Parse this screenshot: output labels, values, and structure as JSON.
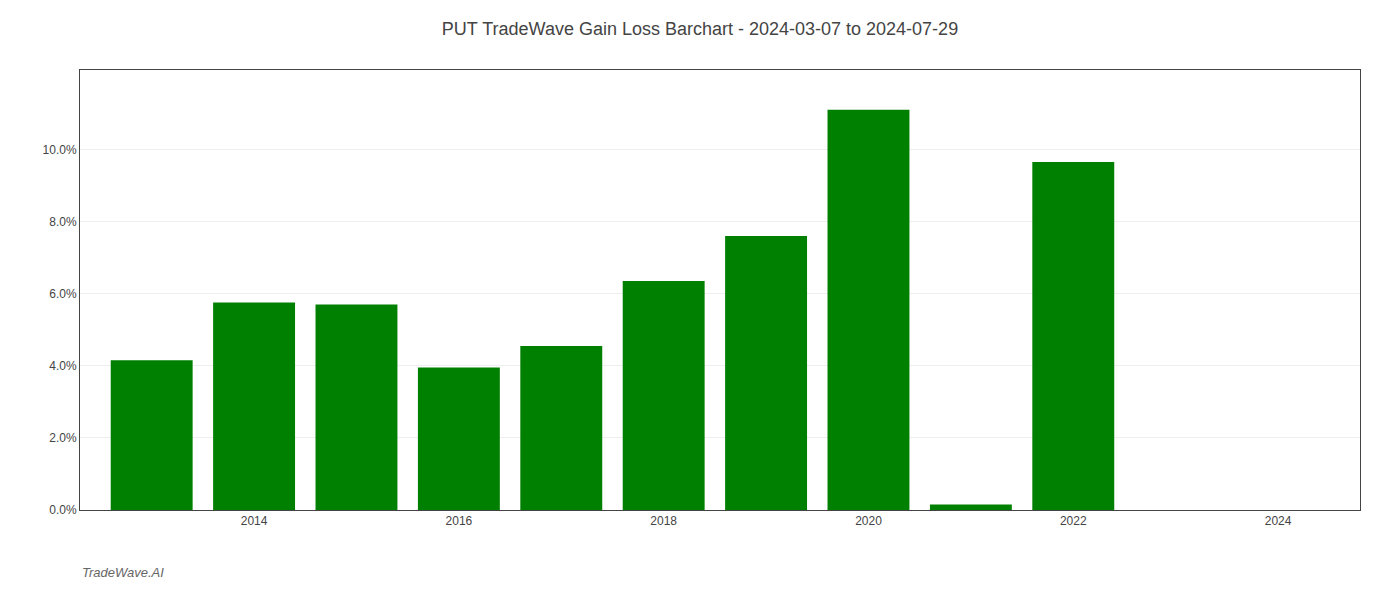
{
  "chart_data": {
    "type": "bar",
    "title": "PUT TradeWave Gain Loss Barchart - 2024-03-07 to 2024-07-29",
    "annotations": [
      {
        "text": "TradeWave.AI"
      }
    ],
    "x": [
      2013,
      2014,
      2015,
      2016,
      2017,
      2018,
      2019,
      2020,
      2021,
      2022,
      2023
    ],
    "values": [
      0.0415,
      0.0575,
      0.057,
      0.0395,
      0.0455,
      0.0635,
      0.076,
      0.111,
      0.0015,
      0.0965,
      0.0
    ],
    "color": "#008000",
    "xlim": [
      2012.3,
      2024.8
    ],
    "xticks": [
      2014,
      2016,
      2018,
      2020,
      2022,
      2024
    ],
    "ylim": [
      0,
      0.122
    ],
    "yticks": [
      {
        "value": 0.0,
        "label": "0.0%"
      },
      {
        "value": 0.02,
        "label": "2.0%"
      },
      {
        "value": 0.04,
        "label": "4.0%"
      },
      {
        "value": 0.06,
        "label": "6.0%"
      },
      {
        "value": 0.08,
        "label": "8.0%"
      },
      {
        "value": 0.1,
        "label": "10.0%"
      }
    ],
    "grid": true
  }
}
